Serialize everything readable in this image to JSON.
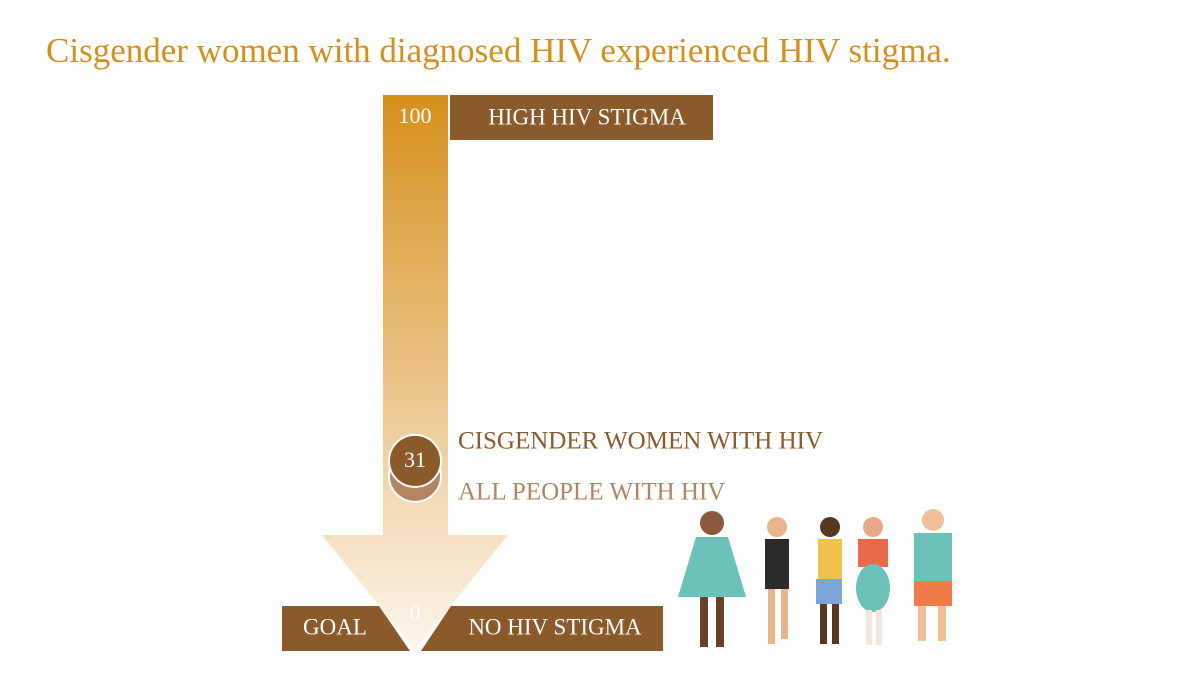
{
  "chart_data": {
    "type": "scale",
    "title": "Cisgender women with diagnosed HIV experienced HIV stigma.",
    "ylim": [
      0,
      100
    ],
    "yticks": [
      0,
      100
    ],
    "top_label": "HIGH HIV STIGMA",
    "bottom_label": "NO HIV STIGMA",
    "goal_label": "GOAL",
    "series": [
      {
        "name": "CISGENDER WOMEN WITH HIV",
        "color": "#8a5a2b",
        "values": [
          31
        ]
      },
      {
        "name": "ALL PEOPLE WITH HIV",
        "color": "#b08560",
        "values": [
          28
        ]
      }
    ]
  }
}
